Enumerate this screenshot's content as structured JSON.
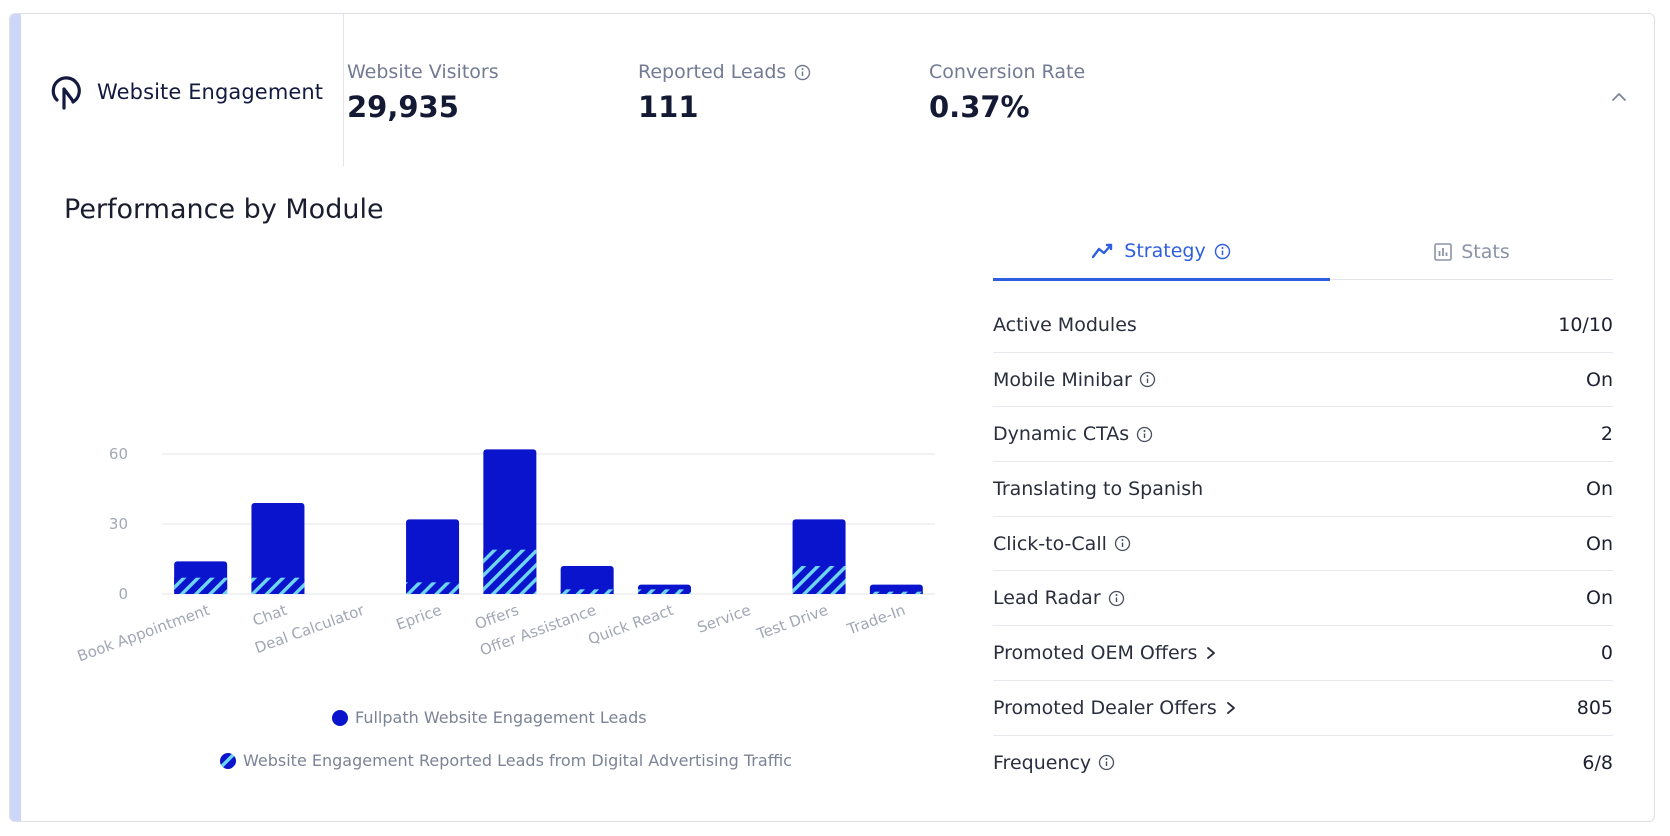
{
  "header": {
    "brand_title": "Website Engagement",
    "kpis": [
      {
        "label": "Website Visitors",
        "value": "29,935",
        "has_info": false
      },
      {
        "label": "Reported Leads",
        "value": "111",
        "has_info": true
      },
      {
        "label": "Conversion Rate",
        "value": "0.37%",
        "has_info": false
      }
    ]
  },
  "section_title": "Performance by Module",
  "tabs": [
    {
      "label": "Strategy",
      "active": true,
      "icon": "trend-line-icon"
    },
    {
      "label": "Stats",
      "active": false,
      "icon": "bar-chart-icon"
    }
  ],
  "strategy_rows": [
    {
      "label": "Active Modules",
      "value": "10/10",
      "icon": ""
    },
    {
      "label": "Mobile Minibar",
      "value": "On",
      "icon": "info"
    },
    {
      "label": "Dynamic CTAs",
      "value": "2",
      "icon": "info"
    },
    {
      "label": "Translating to Spanish",
      "value": "On",
      "icon": ""
    },
    {
      "label": "Click-to-Call",
      "value": "On",
      "icon": "info"
    },
    {
      "label": "Lead Radar",
      "value": "On",
      "icon": "info"
    },
    {
      "label": "Promoted OEM Offers",
      "value": "0",
      "icon": "chevron"
    },
    {
      "label": "Promoted Dealer Offers",
      "value": "805",
      "icon": "chevron"
    },
    {
      "label": "Frequency",
      "value": "6/8",
      "icon": "info"
    }
  ],
  "colors": {
    "accent": "#2f5ede",
    "bar_primary": "#0a14cc",
    "bar_hatch": "#6fd6ef",
    "card_accent": "#ccd6f7"
  },
  "chart_data": {
    "type": "bar",
    "categories": [
      "Book Appointment",
      "Chat",
      "Deal Calculator",
      "Eprice",
      "Offers",
      "Offer Assistance",
      "Quick React",
      "Service",
      "Test Drive",
      "Trade-In"
    ],
    "series": [
      {
        "name": "Fullpath Website Engagement Leads",
        "values": [
          14,
          39,
          0,
          32,
          62,
          12,
          4,
          0,
          32,
          4
        ]
      },
      {
        "name": "Website Engagement Reported Leads from Digital Advertising Traffic",
        "values": [
          7,
          7,
          0,
          5,
          19,
          2,
          2,
          0,
          12,
          1
        ]
      }
    ],
    "yticks": [
      0,
      30,
      60
    ],
    "ylim": [
      0,
      62
    ],
    "grid": true,
    "legend_position": "bottom"
  }
}
